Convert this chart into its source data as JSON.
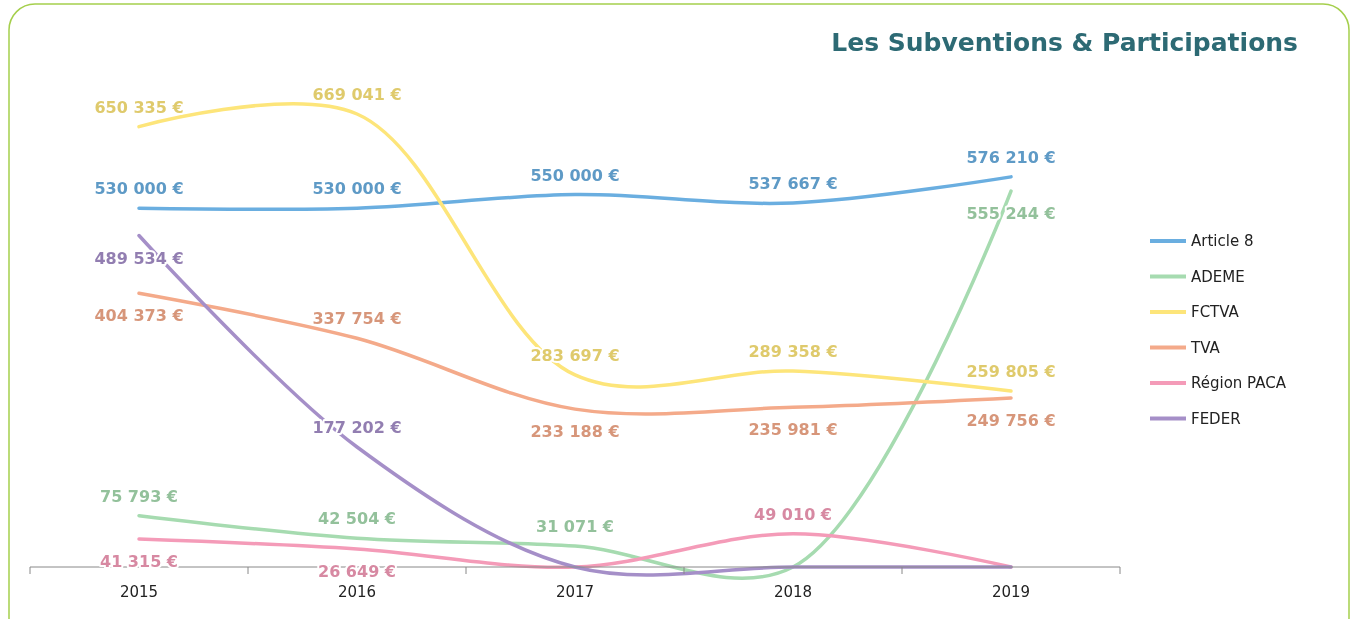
{
  "chart_data": {
    "type": "line",
    "title": "Les Subventions & Participations",
    "categories": [
      "2015",
      "2016",
      "2017",
      "2018",
      "2019"
    ],
    "series": [
      {
        "name": "Article 8",
        "color": "#6aaee0",
        "values": [
          530000,
          530000,
          550000,
          537667,
          576210
        ],
        "value_labels": [
          "530 000 €",
          "530 000 €",
          "550 000 €",
          "537 667 €",
          "576 210 €"
        ]
      },
      {
        "name": "ADEME",
        "color": "#a6dbb0",
        "values": [
          75793,
          42504,
          31071,
          0,
          555244
        ],
        "value_labels": [
          "75 793 €",
          "42 504 €",
          "31 071 €",
          null,
          "555 244 €"
        ]
      },
      {
        "name": "FCTVA",
        "color": "#fde57a",
        "values": [
          650335,
          669041,
          283697,
          289358,
          259805
        ],
        "value_labels": [
          "650 335 €",
          "669 041 €",
          "283 697 €",
          "289 358 €",
          "259 805 €"
        ]
      },
      {
        "name": "TVA",
        "color": "#f4aa8a",
        "values": [
          404373,
          337754,
          233188,
          235981,
          249756
        ],
        "value_labels": [
          "404 373 €",
          "337 754 €",
          "233 188 €",
          "235 981 €",
          "249 756 €"
        ]
      },
      {
        "name": "Région PACA",
        "color": "#f49bb8",
        "values": [
          41315,
          26649,
          0,
          49010,
          0
        ],
        "value_labels": [
          "41 315 €",
          "26 649 €",
          null,
          "49 010 €",
          null
        ]
      },
      {
        "name": "FEDER",
        "color": "#a58fc8",
        "values": [
          489534,
          177202,
          0,
          0,
          0
        ],
        "value_labels": [
          "489 534 €",
          "177 202 €",
          null,
          null,
          null
        ]
      }
    ],
    "legend": "right",
    "grid": false,
    "marker": "none",
    "line_style": "solid"
  }
}
